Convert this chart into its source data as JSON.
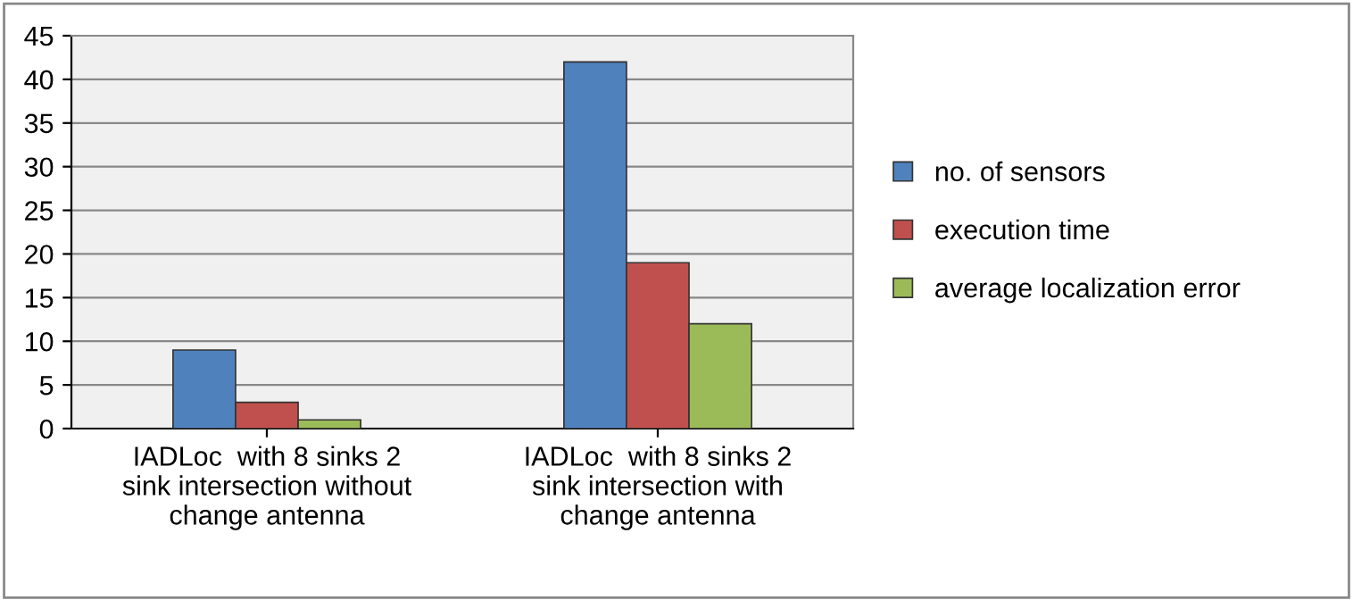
{
  "chart_data": {
    "type": "bar",
    "categories": [
      "IADLoc  with 8 sinks 2\nsink intersection without\nchange antenna",
      "IADLoc  with 8 sinks 2\nsink intersection with\nchange antenna"
    ],
    "series": [
      {
        "name": "no. of sensors",
        "color": "#4f81bd",
        "values": [
          9,
          42
        ]
      },
      {
        "name": "execution time",
        "color": "#c0504d",
        "values": [
          3,
          19
        ]
      },
      {
        "name": "average localization error",
        "color": "#9bbb59",
        "values": [
          1,
          12
        ]
      }
    ],
    "ylim": [
      0,
      45
    ],
    "yticks": [
      0,
      5,
      10,
      15,
      20,
      25,
      30,
      35,
      40,
      45
    ],
    "grid": "y",
    "legend": "right"
  }
}
